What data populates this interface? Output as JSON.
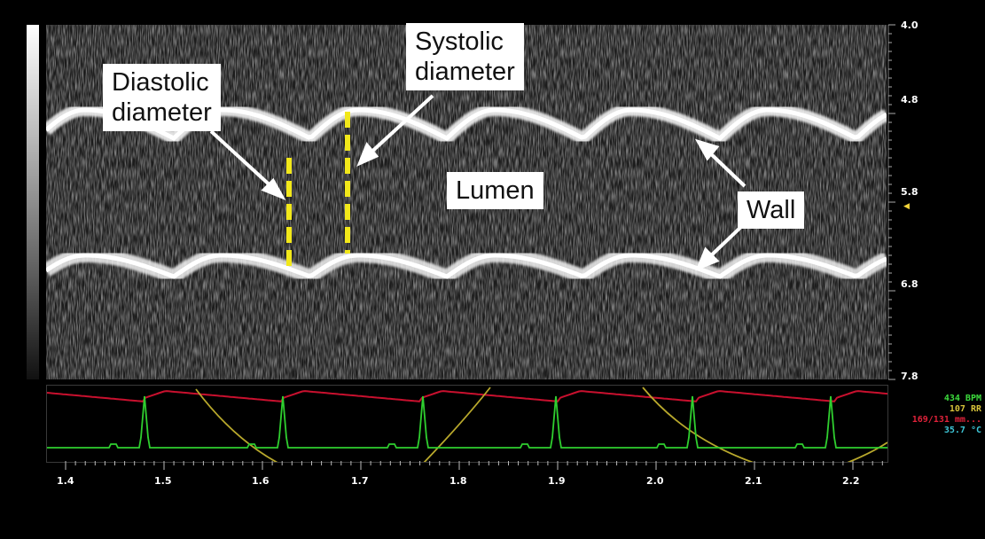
{
  "image": {
    "callouts": {
      "diastolic": "Diastolic\ndiameter",
      "systolic": "Systolic\ndiameter",
      "lumen": "Lumen",
      "wall": "Wall"
    },
    "depth_axis": {
      "ticks": [
        "4.0",
        "4.8",
        "5.8",
        "6.8",
        "7.8"
      ]
    },
    "time_axis": {
      "ticks": [
        "1.4",
        "1.5",
        "1.6",
        "1.7",
        "1.8",
        "1.9",
        "2.0",
        "2.1",
        "2.2"
      ]
    },
    "readouts": {
      "heart_rate": "434 BPM",
      "resp_rate": "107 RR",
      "blood_pressure": "169/131 mm...",
      "temperature": "35.7 °C"
    },
    "colors": {
      "heart_rate": "#3ddc3d",
      "resp_rate": "#d6c23a",
      "blood_pressure": "#e0223a",
      "temperature": "#3ec7d8",
      "diameter_markers": "#f2e81a",
      "ecg_trace": "#2fcf2f",
      "bp_trace": "#c8102e",
      "resp_trace": "#b8a82c"
    }
  }
}
